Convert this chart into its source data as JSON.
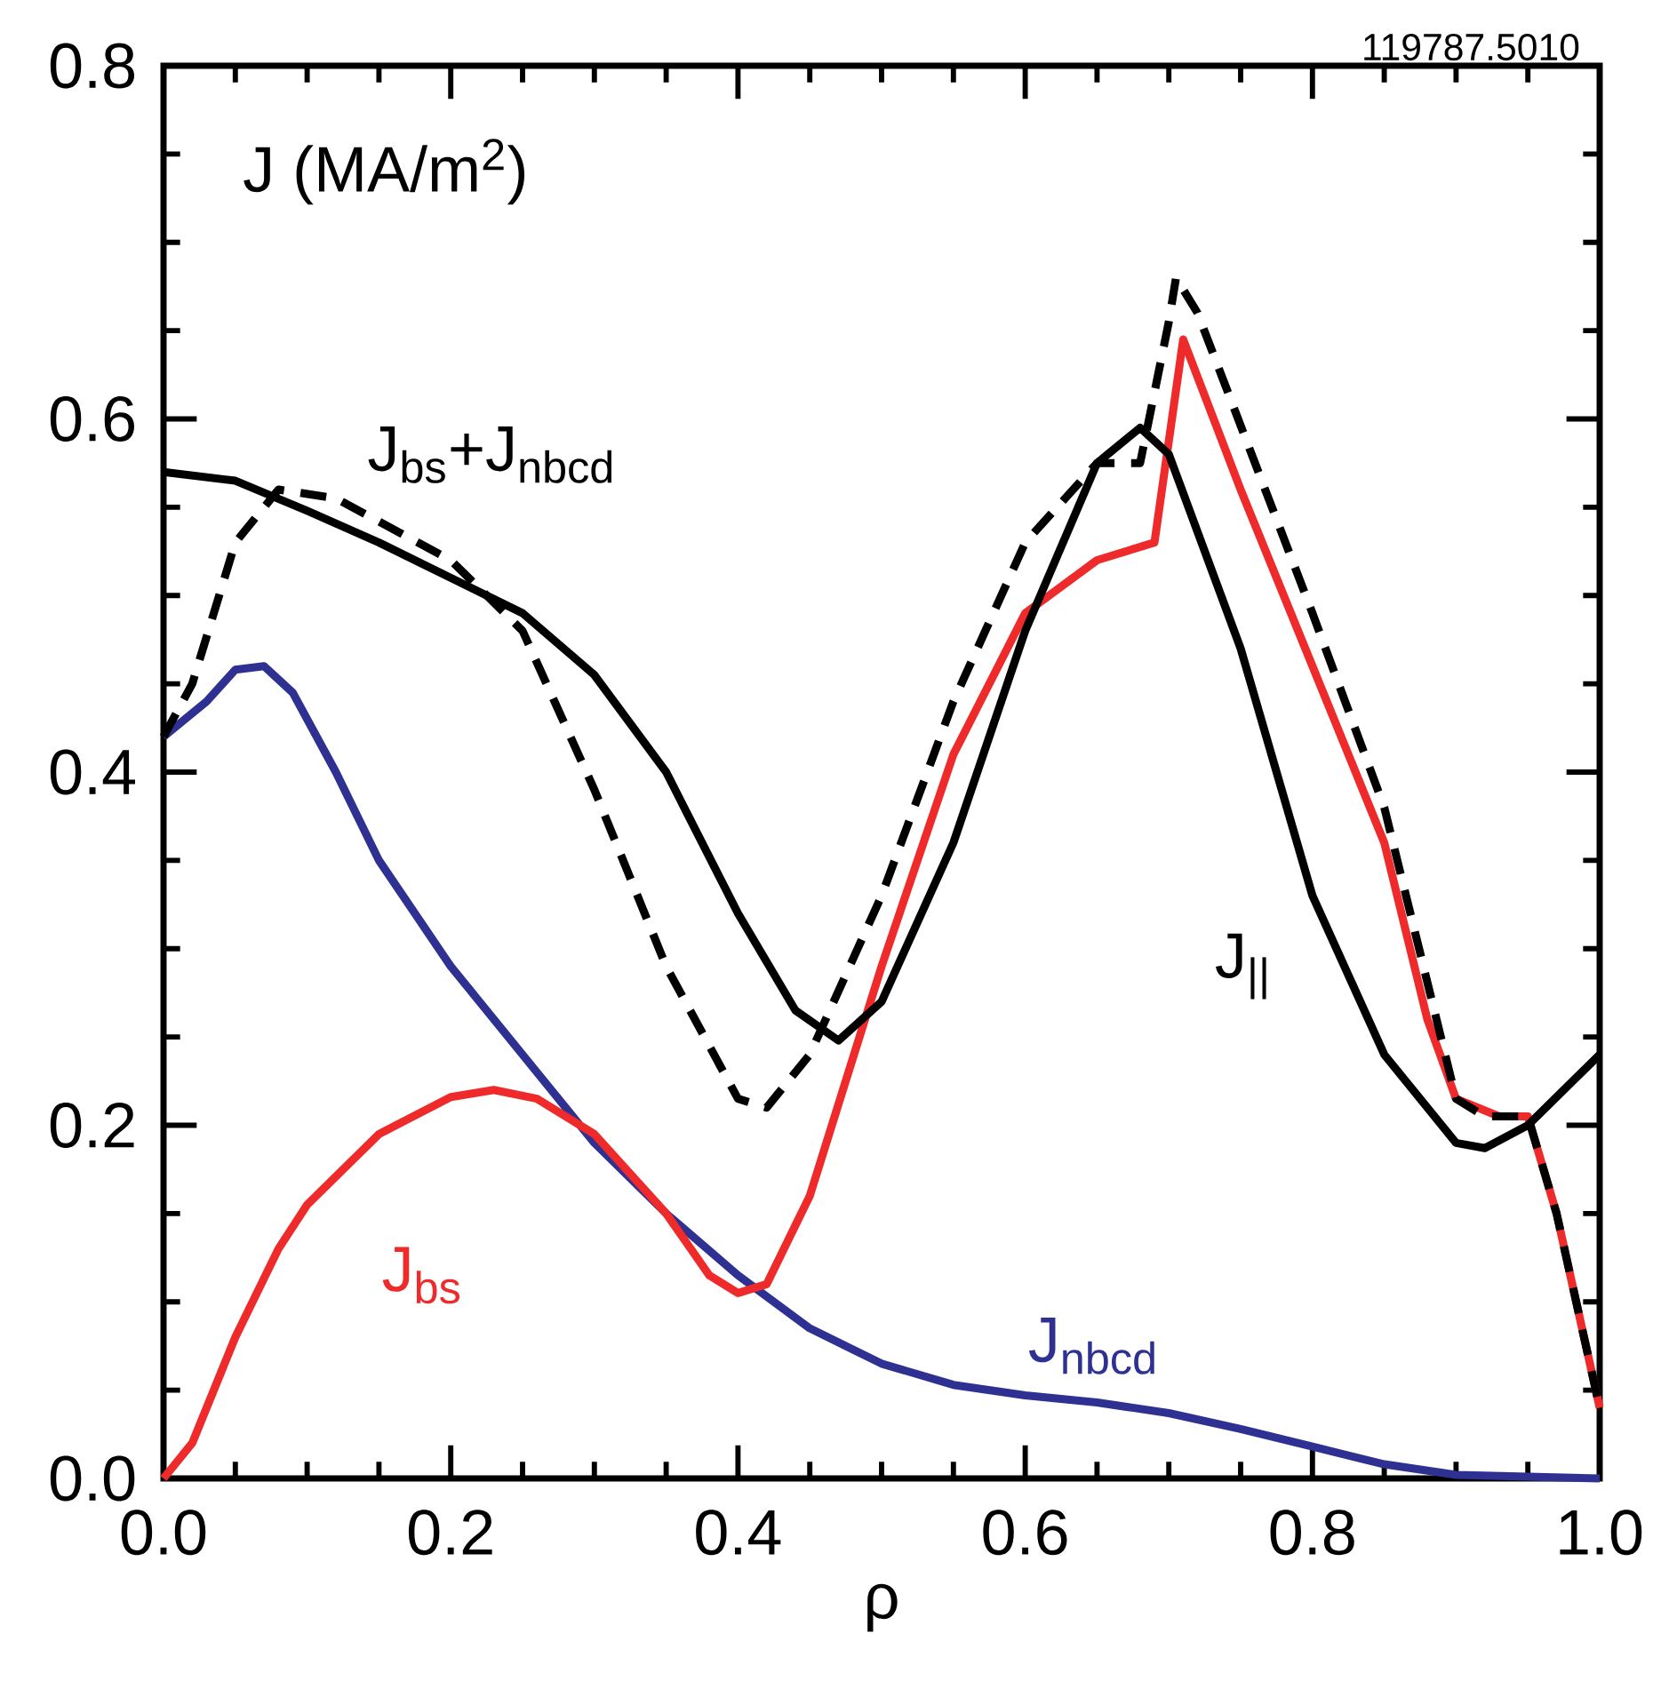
{
  "chart_data": {
    "type": "line",
    "ylabel": "J (MA/m$^{2}$)",
    "xlabel": "ρ",
    "annotations": [
      "119787.5010"
    ],
    "xlim": [
      0,
      1
    ],
    "ylim": [
      0,
      0.8
    ],
    "xticks": [
      {
        "value": 0,
        "label": "0.0"
      },
      {
        "value": 0.2,
        "label": "0.2"
      },
      {
        "value": 0.4,
        "label": "0.4"
      },
      {
        "value": 0.6,
        "label": "0.6"
      },
      {
        "value": 0.8,
        "label": "0.8"
      },
      {
        "value": 1,
        "label": "1.0"
      }
    ],
    "yticks": [
      {
        "value": 0,
        "label": "0.0"
      },
      {
        "value": 0.2,
        "label": "0.2"
      },
      {
        "value": 0.4,
        "label": "0.4"
      },
      {
        "value": 0.6,
        "label": "0.6"
      },
      {
        "value": 0.8,
        "label": "0.8"
      }
    ],
    "series": [
      {
        "name": "J$_{nbcd}$",
        "color": "#2e3192",
        "line_style": "solid",
        "x": [
          0,
          0.03,
          0.05,
          0.07,
          0.09,
          0.12,
          0.15,
          0.2,
          0.25,
          0.3,
          0.35,
          0.4,
          0.45,
          0.5,
          0.55,
          0.6,
          0.65,
          0.7,
          0.75,
          0.8,
          0.85,
          0.9,
          0.95,
          1.0
        ],
        "values": [
          0.42,
          0.44,
          0.458,
          0.46,
          0.445,
          0.4,
          0.35,
          0.29,
          0.24,
          0.19,
          0.15,
          0.115,
          0.085,
          0.065,
          0.053,
          0.047,
          0.043,
          0.037,
          0.028,
          0.018,
          0.008,
          0.002,
          0.001,
          0.0
        ]
      },
      {
        "name": "J$_{bs}$",
        "color": "#ee2a2a",
        "line_style": "solid",
        "x": [
          0,
          0.02,
          0.05,
          0.08,
          0.1,
          0.15,
          0.2,
          0.23,
          0.26,
          0.3,
          0.35,
          0.38,
          0.4,
          0.42,
          0.45,
          0.5,
          0.55,
          0.6,
          0.65,
          0.69,
          0.71,
          0.75,
          0.8,
          0.85,
          0.88,
          0.9,
          0.93,
          0.95,
          0.97,
          1.0
        ],
        "values": [
          0,
          0.02,
          0.08,
          0.13,
          0.155,
          0.195,
          0.216,
          0.22,
          0.215,
          0.195,
          0.15,
          0.115,
          0.105,
          0.11,
          0.16,
          0.29,
          0.41,
          0.49,
          0.52,
          0.53,
          0.645,
          0.56,
          0.46,
          0.36,
          0.26,
          0.215,
          0.205,
          0.205,
          0.15,
          0.04
        ]
      },
      {
        "name": "J$_{||}$",
        "color": "#000000",
        "line_style": "solid",
        "x": [
          0,
          0.05,
          0.1,
          0.15,
          0.2,
          0.25,
          0.3,
          0.35,
          0.4,
          0.44,
          0.47,
          0.5,
          0.55,
          0.6,
          0.65,
          0.68,
          0.7,
          0.75,
          0.8,
          0.85,
          0.9,
          0.92,
          0.95,
          1.0
        ],
        "values": [
          0.57,
          0.565,
          0.548,
          0.53,
          0.51,
          0.49,
          0.455,
          0.4,
          0.32,
          0.265,
          0.248,
          0.27,
          0.36,
          0.48,
          0.575,
          0.595,
          0.58,
          0.47,
          0.33,
          0.24,
          0.19,
          0.187,
          0.2,
          0.24
        ]
      },
      {
        "name": "J$_{bs}$+J$_{nbcd}$",
        "color": "#000000",
        "line_style": "dashed",
        "x": [
          0,
          0.02,
          0.05,
          0.08,
          0.12,
          0.2,
          0.25,
          0.3,
          0.35,
          0.4,
          0.42,
          0.45,
          0.5,
          0.55,
          0.6,
          0.65,
          0.68,
          0.7,
          0.705,
          0.72,
          0.8,
          0.85,
          0.9,
          0.92,
          0.95,
          0.97,
          1.0
        ],
        "values": [
          0.42,
          0.45,
          0.53,
          0.56,
          0.555,
          0.52,
          0.48,
          0.39,
          0.29,
          0.215,
          0.21,
          0.24,
          0.33,
          0.44,
          0.53,
          0.575,
          0.575,
          0.655,
          0.68,
          0.66,
          0.49,
          0.38,
          0.215,
          0.205,
          0.205,
          0.15,
          0.04
        ]
      }
    ]
  }
}
